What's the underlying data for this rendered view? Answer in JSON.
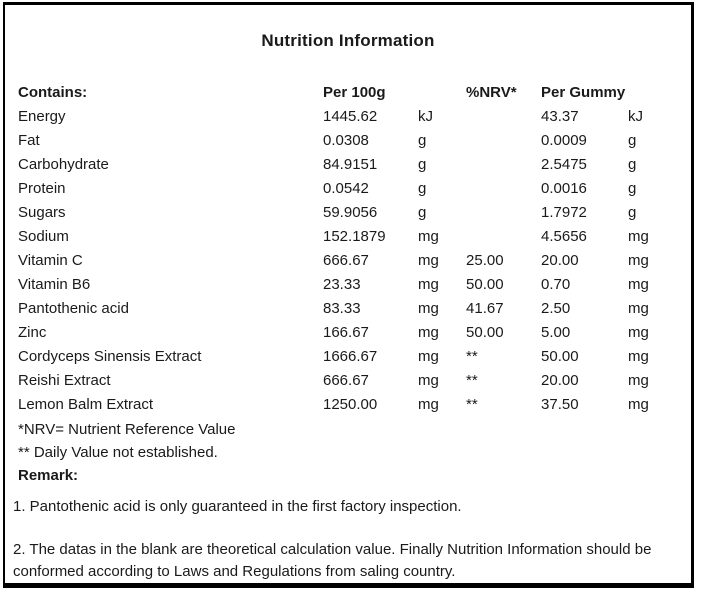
{
  "title": "Nutrition Information",
  "table": {
    "headers": {
      "contains": "Contains:",
      "per_100g": "Per 100g",
      "nrv": "%NRV*",
      "per_gummy": "Per Gummy"
    },
    "rows": [
      {
        "name": "Energy",
        "per_100g": "1445.62",
        "per_100g_unit": "kJ",
        "nrv": "",
        "per_gummy": "43.37",
        "per_gummy_unit": "kJ"
      },
      {
        "name": "Fat",
        "per_100g": "0.0308",
        "per_100g_unit": "g",
        "nrv": "",
        "per_gummy": "0.0009",
        "per_gummy_unit": "g"
      },
      {
        "name": "Carbohydrate",
        "per_100g": "84.9151",
        "per_100g_unit": "g",
        "nrv": "",
        "per_gummy": "2.5475",
        "per_gummy_unit": "g"
      },
      {
        "name": "Protein",
        "per_100g": "0.0542",
        "per_100g_unit": "g",
        "nrv": "",
        "per_gummy": "0.0016",
        "per_gummy_unit": "g"
      },
      {
        "name": "Sugars",
        "per_100g": "59.9056",
        "per_100g_unit": "g",
        "nrv": "",
        "per_gummy": "1.7972",
        "per_gummy_unit": "g"
      },
      {
        "name": "Sodium",
        "per_100g": "152.1879",
        "per_100g_unit": "mg",
        "nrv": "",
        "per_gummy": "4.5656",
        "per_gummy_unit": "mg"
      },
      {
        "name": "Vitamin C",
        "per_100g": "666.67",
        "per_100g_unit": "mg",
        "nrv": "25.00",
        "per_gummy": "20.00",
        "per_gummy_unit": "mg"
      },
      {
        "name": "Vitamin B6",
        "per_100g": "23.33",
        "per_100g_unit": "mg",
        "nrv": "50.00",
        "per_gummy": "0.70",
        "per_gummy_unit": "mg"
      },
      {
        "name": "Pantothenic acid",
        "per_100g": "83.33",
        "per_100g_unit": "mg",
        "nrv": "41.67",
        "per_gummy": "2.50",
        "per_gummy_unit": "mg"
      },
      {
        "name": "Zinc",
        "per_100g": "166.67",
        "per_100g_unit": "mg",
        "nrv": "50.00",
        "per_gummy": "5.00",
        "per_gummy_unit": "mg"
      },
      {
        "name": "Cordyceps Sinensis Extract",
        "per_100g": "1666.67",
        "per_100g_unit": "mg",
        "nrv": "**",
        "per_gummy": "50.00",
        "per_gummy_unit": "mg"
      },
      {
        "name": "Reishi Extract",
        "per_100g": "666.67",
        "per_100g_unit": "mg",
        "nrv": "**",
        "per_gummy": "20.00",
        "per_gummy_unit": "mg"
      },
      {
        "name": "Lemon Balm Extract",
        "per_100g": "1250.00",
        "per_100g_unit": "mg",
        "nrv": "**",
        "per_gummy": "37.50",
        "per_gummy_unit": "mg"
      }
    ]
  },
  "footnotes": {
    "nrv_definition": "*NRV= Nutrient Reference Value",
    "daily_value": "** Daily Value not established."
  },
  "remark": {
    "label": "Remark:",
    "items": [
      "1. Pantothenic acid is only guaranteed in the first factory inspection.",
      "2. The datas in the blank are theoretical calculation value. Finally Nutrition Information should be conformed according to Laws and Regulations from saling country."
    ]
  },
  "colors": {
    "text": "#1a1a1a",
    "border": "#000000",
    "background": "#ffffff"
  }
}
